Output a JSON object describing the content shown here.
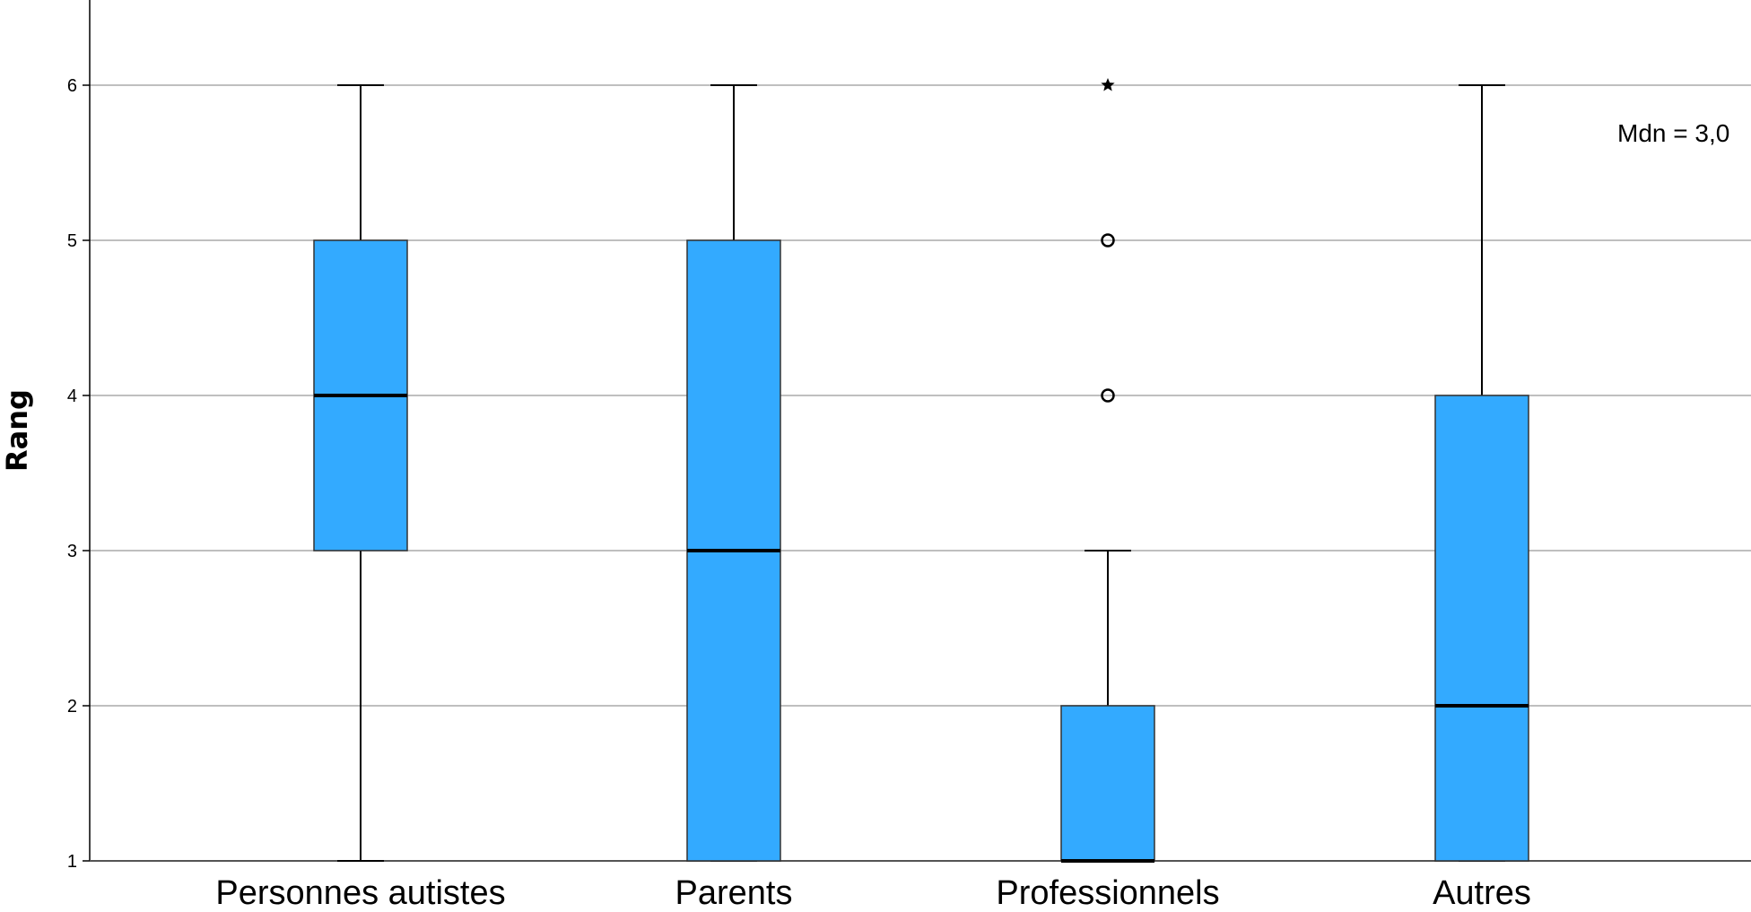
{
  "chart_data": {
    "type": "boxplot",
    "ylabel": "Rang",
    "ylim": [
      1,
      6.5
    ],
    "yticks": [
      1,
      2,
      3,
      4,
      5,
      6
    ],
    "grid": true,
    "box_color": "#33aaff",
    "categories": [
      "Personnes autistes",
      "Parents",
      "Professionnels",
      "Autres"
    ],
    "boxes": [
      {
        "category": "Personnes autistes",
        "whisker_low": 1,
        "q1": 3,
        "median": 4,
        "q3": 5,
        "whisker_high": 6,
        "outliers": [],
        "extremes": []
      },
      {
        "category": "Parents",
        "whisker_low": 1,
        "q1": 1,
        "median": 3,
        "q3": 5,
        "whisker_high": 6,
        "outliers": [],
        "extremes": []
      },
      {
        "category": "Professionnels",
        "whisker_low": 1,
        "q1": 1,
        "median": 1,
        "q3": 2,
        "whisker_high": 3,
        "outliers": [
          4,
          5
        ],
        "extremes": [
          6
        ]
      },
      {
        "category": "Autres",
        "whisker_low": 1,
        "q1": 1,
        "median": 2,
        "q3": 4,
        "whisker_high": 6,
        "outliers": [],
        "extremes": []
      }
    ],
    "annotation": "Mdn = 3,0"
  }
}
